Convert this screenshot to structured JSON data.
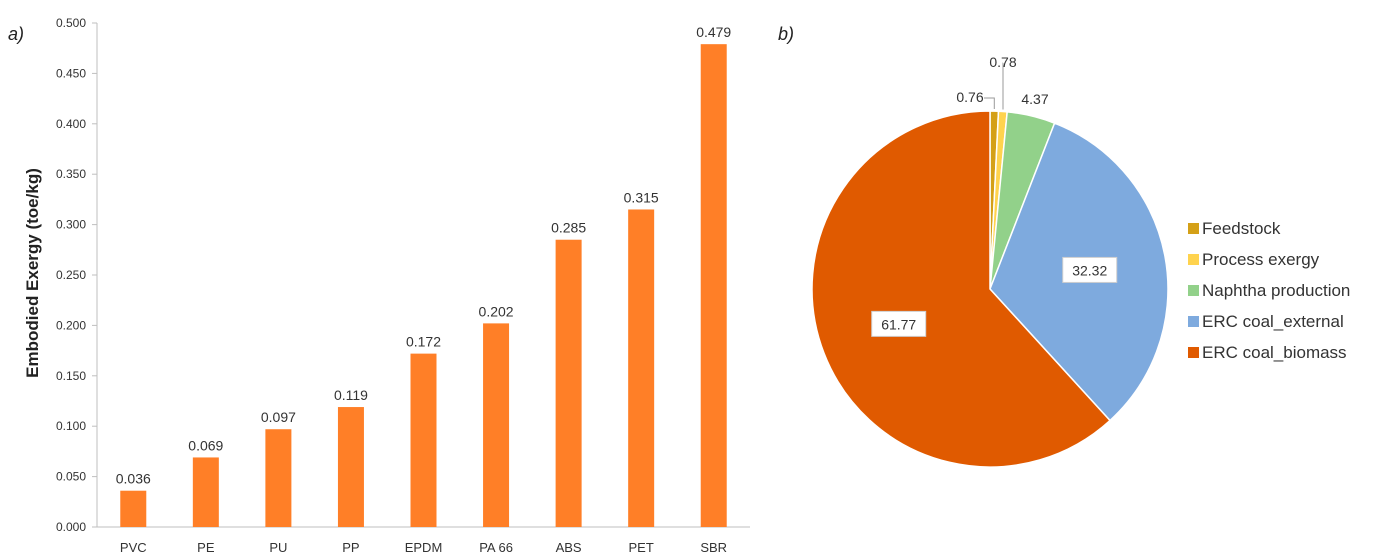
{
  "chart_data": [
    {
      "panel": "a)",
      "type": "bar",
      "ylabel": "Embodied Exergy (toe/kg)",
      "ylim": [
        0,
        0.5
      ],
      "yticks": [
        "0.000",
        "0.050",
        "0.100",
        "0.150",
        "0.200",
        "0.250",
        "0.300",
        "0.350",
        "0.400",
        "0.450",
        "0.500"
      ],
      "categories": [
        "PVC",
        "PE",
        "PU",
        "PP",
        "EPDM",
        "PA 66",
        "ABS",
        "PET",
        "SBR"
      ],
      "values": [
        0.036,
        0.069,
        0.097,
        0.119,
        0.172,
        0.202,
        0.285,
        0.315,
        0.479
      ],
      "value_labels": [
        "0.036",
        "0.069",
        "0.097",
        "0.119",
        "0.172",
        "0.202",
        "0.285",
        "0.315",
        "0.479"
      ],
      "color": "#FF7F27",
      "grid": false
    },
    {
      "panel": "b)",
      "type": "pie",
      "legend_position": "right",
      "slices": [
        {
          "name": "Feedstock",
          "value": 0.76,
          "label": "0.76",
          "color": "#D4A017"
        },
        {
          "name": "Process exergy",
          "value": 0.78,
          "label": "0.78",
          "color": "#FFD34E"
        },
        {
          "name": "Naphtha production",
          "value": 4.37,
          "label": "4.37",
          "color": "#92D18A"
        },
        {
          "name": "ERC coal_external",
          "value": 32.32,
          "label": "32.32",
          "color": "#7EAADE"
        },
        {
          "name": "ERC coal_biomass",
          "value": 61.77,
          "label": "61.77",
          "color": "#E05A00"
        }
      ]
    }
  ]
}
